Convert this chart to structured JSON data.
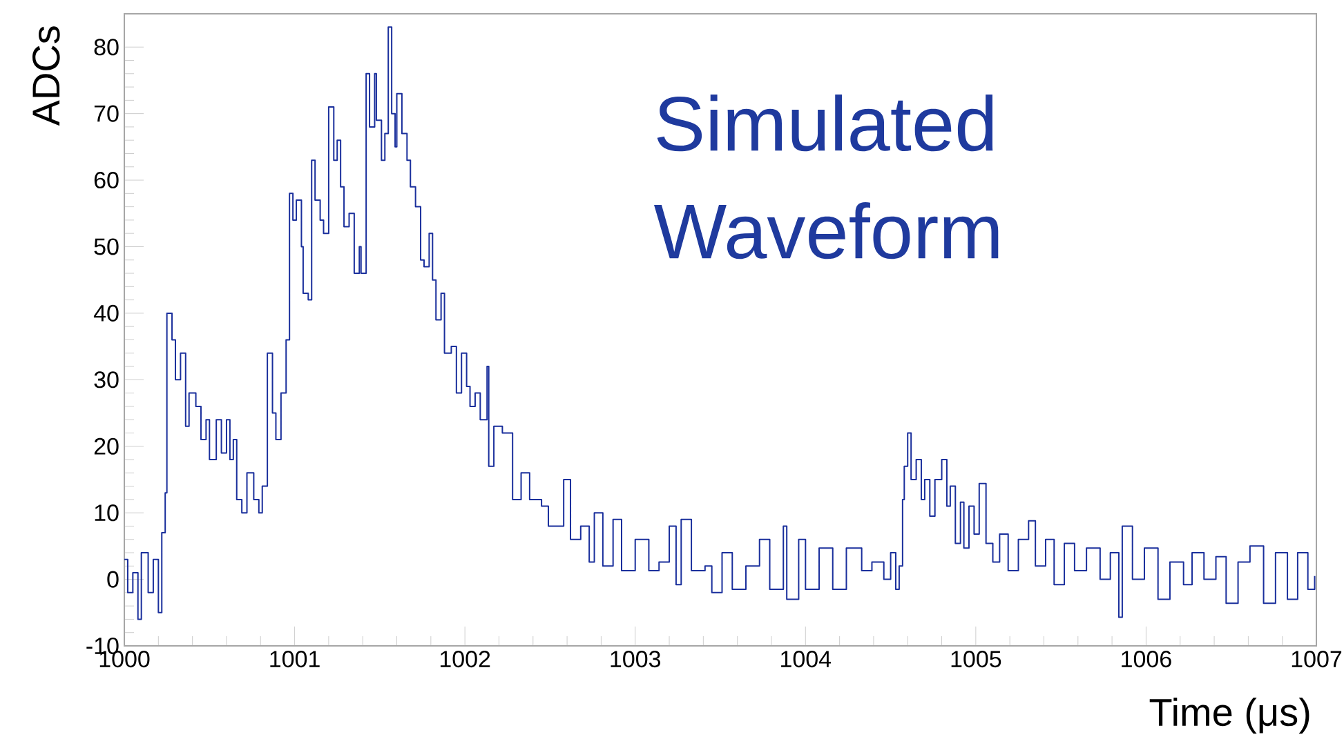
{
  "chart_data": {
    "type": "step",
    "xlabel": "Time (μs)",
    "ylabel": "ADCs",
    "annotations": [
      "Simulated Waveform"
    ],
    "color": "#1a2f9c",
    "xlim": [
      1000,
      1007
    ],
    "ylim": [
      -10,
      85
    ],
    "xticks": [
      1000,
      1001,
      1002,
      1003,
      1004,
      1005,
      1006,
      1007
    ],
    "yticks": [
      -10,
      0,
      10,
      20,
      30,
      40,
      50,
      60,
      70,
      80
    ],
    "x": [
      1000.0,
      1000.02,
      1000.05,
      1000.08,
      1000.1,
      1000.14,
      1000.17,
      1000.2,
      1000.22,
      1000.24,
      1000.25,
      1000.28,
      1000.3,
      1000.33,
      1000.36,
      1000.38,
      1000.42,
      1000.45,
      1000.48,
      1000.5,
      1000.54,
      1000.57,
      1000.6,
      1000.62,
      1000.64,
      1000.66,
      1000.69,
      1000.72,
      1000.76,
      1000.79,
      1000.81,
      1000.84,
      1000.87,
      1000.89,
      1000.92,
      1000.95,
      1000.97,
      1000.99,
      1001.01,
      1001.04,
      1001.05,
      1001.08,
      1001.1,
      1001.12,
      1001.15,
      1001.17,
      1001.2,
      1001.23,
      1001.25,
      1001.27,
      1001.29,
      1001.32,
      1001.35,
      1001.38,
      1001.39,
      1001.42,
      1001.44,
      1001.47,
      1001.48,
      1001.51,
      1001.53,
      1001.55,
      1001.57,
      1001.59,
      1001.6,
      1001.63,
      1001.66,
      1001.68,
      1001.71,
      1001.74,
      1001.76,
      1001.79,
      1001.81,
      1001.83,
      1001.86,
      1001.88,
      1001.92,
      1001.95,
      1001.98,
      1002.01,
      1002.03,
      1002.06,
      1002.09,
      1002.13,
      1002.14,
      1002.17,
      1002.22,
      1002.28,
      1002.33,
      1002.38,
      1002.45,
      1002.49,
      1002.58,
      1002.62,
      1002.68,
      1002.73,
      1002.76,
      1002.81,
      1002.87,
      1002.92,
      1003.0,
      1003.08,
      1003.14,
      1003.2,
      1003.24,
      1003.27,
      1003.33,
      1003.41,
      1003.45,
      1003.51,
      1003.57,
      1003.65,
      1003.73,
      1003.79,
      1003.87,
      1003.89,
      1003.96,
      1004.0,
      1004.08,
      1004.16,
      1004.24,
      1004.33,
      1004.39,
      1004.46,
      1004.5,
      1004.53,
      1004.55,
      1004.57,
      1004.58,
      1004.6,
      1004.62,
      1004.65,
      1004.68,
      1004.7,
      1004.73,
      1004.76,
      1004.8,
      1004.83,
      1004.85,
      1004.88,
      1004.91,
      1004.93,
      1004.96,
      1004.99,
      1005.02,
      1005.06,
      1005.1,
      1005.14,
      1005.19,
      1005.25,
      1005.31,
      1005.35,
      1005.41,
      1005.46,
      1005.52,
      1005.58,
      1005.65,
      1005.73,
      1005.79,
      1005.84,
      1005.86,
      1005.92,
      1005.99,
      1006.07,
      1006.14,
      1006.22,
      1006.27,
      1006.34,
      1006.41,
      1006.47,
      1006.54,
      1006.61,
      1006.69,
      1006.76,
      1006.83,
      1006.89,
      1006.95,
      1006.99
    ],
    "values": [
      3,
      -2,
      1,
      -6,
      4,
      -2,
      3,
      -5,
      7,
      13,
      40,
      36,
      30,
      34,
      23,
      28,
      26,
      21,
      24,
      18,
      24,
      19,
      24,
      18,
      21,
      12,
      10,
      16,
      12,
      10,
      14,
      34,
      25,
      21,
      28,
      36,
      58,
      54,
      57,
      50,
      43,
      42,
      63,
      57,
      54,
      52,
      71,
      63,
      66,
      59,
      53,
      55,
      46,
      50,
      46,
      76,
      68,
      76,
      69,
      63,
      67,
      83,
      70,
      65,
      73,
      67,
      63,
      59,
      56,
      48,
      47,
      52,
      45,
      39,
      43,
      34,
      35,
      28,
      34,
      29,
      26,
      28,
      24,
      32,
      17,
      23,
      22,
      12,
      16,
      12,
      11,
      8,
      15,
      6,
      8,
      2.6,
      10,
      2,
      9,
      1.3,
      6,
      1.3,
      2.6,
      8,
      -0.8,
      9,
      1.3,
      2,
      -2,
      4,
      -1.5,
      2,
      6,
      -1.5,
      8,
      -3,
      6,
      -1.5,
      4.7,
      -1.5,
      4.7,
      1.3,
      2.6,
      0,
      4,
      -1.5,
      2,
      12,
      17,
      22,
      15,
      18,
      12,
      15,
      9.5,
      15,
      18,
      11,
      14,
      5.4,
      11.6,
      4.7,
      11,
      6.8,
      14.4,
      5.4,
      2.6,
      6.8,
      1.3,
      6,
      8.8,
      2,
      6,
      -0.8,
      5.4,
      1.3,
      4.7,
      0,
      4,
      -5.7,
      8,
      0,
      4.7,
      -3,
      2.6,
      -0.8,
      4,
      0,
      3.4,
      -3.6,
      2.6,
      5,
      -3.6,
      4,
      -3,
      4,
      -1.5,
      0.5
    ]
  }
}
